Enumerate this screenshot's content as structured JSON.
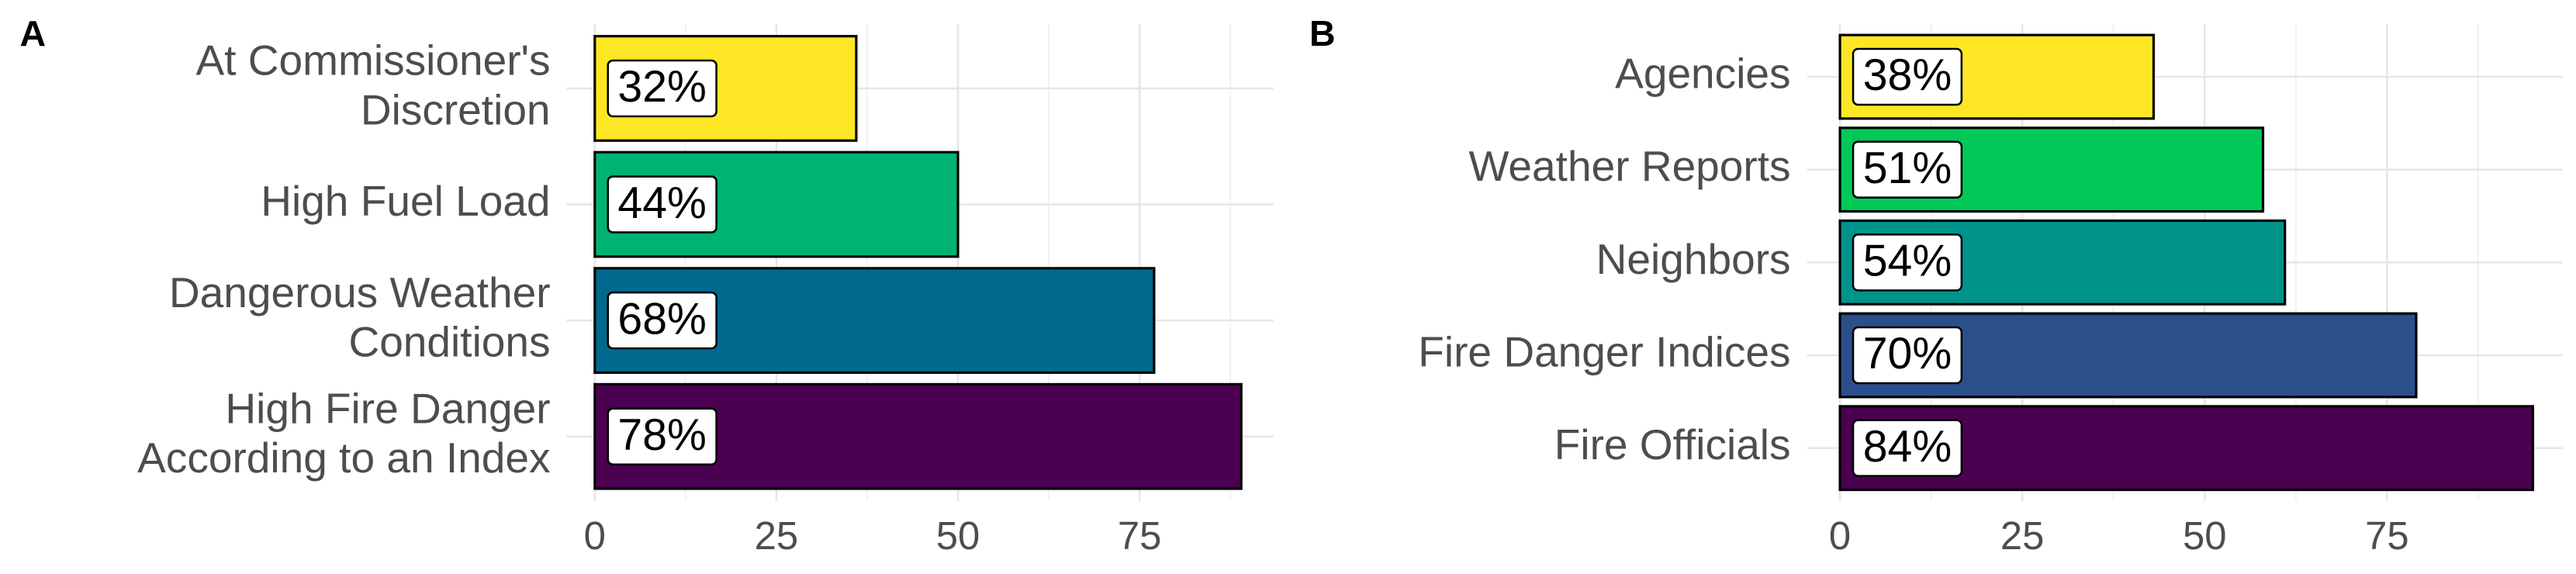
{
  "chart_data": [
    {
      "type": "bar",
      "orientation": "horizontal",
      "panel_label": "A",
      "categories": [
        [
          "At Commissioner's",
          "Discretion"
        ],
        [
          "High Fuel Load"
        ],
        [
          "Dangerous Weather",
          "Conditions"
        ],
        [
          "High Fire Danger",
          "According to an Index"
        ]
      ],
      "values": [
        36,
        50,
        77,
        89
      ],
      "value_labels": [
        "32%",
        "44%",
        "68%",
        "78%"
      ],
      "colors": [
        "#fde725",
        "#00b371",
        "#006a8e",
        "#4b0050"
      ],
      "xlim": [
        -3.85,
        93.4
      ],
      "xticks": [
        0,
        25,
        50,
        75
      ],
      "grid": true
    },
    {
      "type": "bar",
      "orientation": "horizontal",
      "panel_label": "B",
      "categories": [
        [
          "Agencies"
        ],
        [
          "Weather Reports"
        ],
        [
          "Neighbors"
        ],
        [
          "Fire Danger Indices"
        ],
        [
          "Fire Officials"
        ]
      ],
      "values": [
        43,
        58,
        61,
        79,
        95
      ],
      "value_labels": [
        "38%",
        "51%",
        "54%",
        "70%",
        "84%"
      ],
      "colors": [
        "#fde725",
        "#00c957",
        "#00938c",
        "#2b4f8a",
        "#4b0050"
      ],
      "xlim": [
        -4.5,
        99.1
      ],
      "xticks": [
        0,
        25,
        50,
        75
      ],
      "grid": true
    }
  ]
}
